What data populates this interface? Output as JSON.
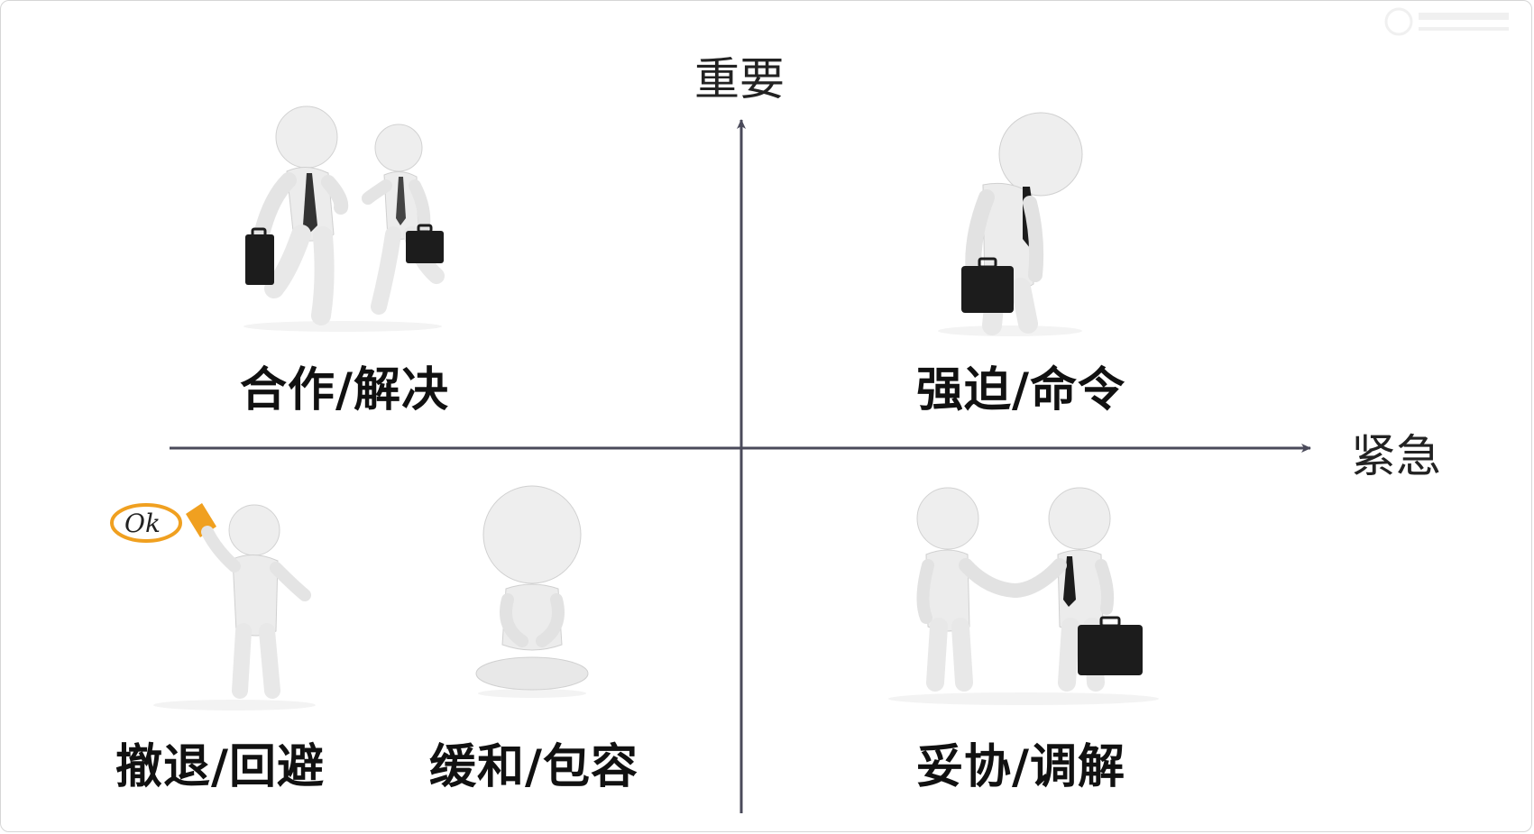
{
  "axes": {
    "vertical_label": "重要",
    "horizontal_label": "紧急",
    "line_color": "#4a4a5a"
  },
  "quadrants": [
    {
      "id": "top-left",
      "label": "合作/解决",
      "illustration": "two-figures-walking-with-briefcases"
    },
    {
      "id": "top-right",
      "label": "强迫/命令",
      "illustration": "figure-bowing-with-briefcase"
    },
    {
      "id": "bottom-left-1",
      "label": "撤退/回避",
      "illustration": "figure-writing-ok"
    },
    {
      "id": "bottom-left-2",
      "label": "缓和/包容",
      "illustration": "figure-meditating"
    },
    {
      "id": "bottom-right",
      "label": "妥协/调解",
      "illustration": "two-figures-shaking-hands"
    }
  ],
  "ok_badge_text": "Ok",
  "colors": {
    "figure": "#eeeeee",
    "figure_shade": "#c9c9c9",
    "briefcase": "#1c1c1c",
    "marker": "#f0a020"
  }
}
